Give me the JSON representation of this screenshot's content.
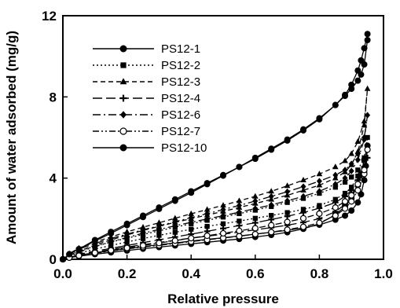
{
  "chart_data": {
    "type": "line",
    "xlabel": "Relative pressure",
    "ylabel": "Amount of water adsorbed (mg/g)",
    "xlim": [
      0,
      1.0
    ],
    "ylim": [
      0,
      12
    ],
    "x_ticks": [
      "0.0",
      "0.2",
      "0.4",
      "0.6",
      "0.8",
      "1.0"
    ],
    "y_ticks": [
      "0",
      "4",
      "8",
      "12"
    ],
    "grid": false,
    "legend_position": "top-left",
    "series": [
      {
        "name": "PS12-1",
        "marker": "circle-filled",
        "dash": "solid",
        "x": [
          0.0,
          0.02,
          0.05,
          0.1,
          0.15,
          0.2,
          0.25,
          0.3,
          0.35,
          0.4,
          0.45,
          0.5,
          0.55,
          0.6,
          0.65,
          0.7,
          0.75,
          0.8,
          0.85,
          0.88,
          0.9,
          0.92,
          0.93,
          0.94,
          0.95,
          0.945,
          0.94,
          0.93,
          0.92,
          0.9,
          0.88,
          0.85,
          0.8,
          0.75,
          0.7,
          0.65,
          0.6,
          0.55,
          0.5,
          0.45,
          0.4,
          0.35,
          0.3,
          0.25,
          0.2,
          0.15,
          0.1,
          0.05,
          0.02
        ],
        "y": [
          0.0,
          0.08,
          0.15,
          0.25,
          0.34,
          0.43,
          0.52,
          0.6,
          0.68,
          0.76,
          0.84,
          0.92,
          1.0,
          1.1,
          1.2,
          1.33,
          1.5,
          1.75,
          2.2,
          2.6,
          3.0,
          3.7,
          4.2,
          4.9,
          5.6,
          4.6,
          3.9,
          3.2,
          2.8,
          2.4,
          2.15,
          1.95,
          1.7,
          1.55,
          1.43,
          1.33,
          1.24,
          1.15,
          1.06,
          0.98,
          0.9,
          0.8,
          0.72,
          0.62,
          0.52,
          0.42,
          0.32,
          0.2,
          0.1
        ]
      },
      {
        "name": "PS12-2",
        "marker": "square-filled",
        "dash": "dotted",
        "x": [
          0.0,
          0.02,
          0.05,
          0.1,
          0.15,
          0.2,
          0.25,
          0.3,
          0.35,
          0.4,
          0.45,
          0.5,
          0.55,
          0.6,
          0.65,
          0.7,
          0.75,
          0.8,
          0.85,
          0.88,
          0.9,
          0.92,
          0.94,
          0.95,
          0.94,
          0.92,
          0.9,
          0.88,
          0.85,
          0.8,
          0.75,
          0.7,
          0.65,
          0.6,
          0.55,
          0.5,
          0.45,
          0.4,
          0.35,
          0.3,
          0.25,
          0.2,
          0.15,
          0.1,
          0.05,
          0.02
        ],
        "y": [
          0.0,
          0.15,
          0.3,
          0.5,
          0.68,
          0.85,
          1.02,
          1.18,
          1.33,
          1.48,
          1.62,
          1.75,
          1.88,
          2.02,
          2.16,
          2.3,
          2.46,
          2.65,
          2.95,
          3.25,
          3.55,
          4.1,
          4.9,
          6.0,
          5.0,
          4.4,
          4.05,
          3.8,
          3.55,
          3.25,
          3.0,
          2.8,
          2.6,
          2.42,
          2.25,
          2.08,
          1.92,
          1.75,
          1.58,
          1.4,
          1.22,
          1.04,
          0.85,
          0.65,
          0.4,
          0.2
        ]
      },
      {
        "name": "PS12-3",
        "marker": "triangle-filled",
        "dash": "dashed",
        "x": [
          0.0,
          0.02,
          0.05,
          0.1,
          0.15,
          0.2,
          0.25,
          0.3,
          0.35,
          0.4,
          0.45,
          0.5,
          0.55,
          0.6,
          0.65,
          0.7,
          0.75,
          0.8,
          0.85,
          0.88,
          0.9,
          0.92,
          0.94,
          0.95,
          0.94,
          0.92,
          0.9,
          0.88,
          0.85,
          0.8,
          0.75,
          0.7,
          0.65,
          0.6,
          0.55,
          0.5,
          0.45,
          0.4,
          0.35,
          0.3,
          0.25,
          0.2,
          0.15,
          0.1,
          0.05,
          0.02
        ],
        "y": [
          0.0,
          0.2,
          0.4,
          0.7,
          0.95,
          1.2,
          1.42,
          1.62,
          1.82,
          2.0,
          2.18,
          2.36,
          2.55,
          2.75,
          2.95,
          3.15,
          3.4,
          3.65,
          4.0,
          4.3,
          4.65,
          5.3,
          6.6,
          8.4,
          6.8,
          5.8,
          5.2,
          4.85,
          4.55,
          4.2,
          3.9,
          3.62,
          3.35,
          3.1,
          2.88,
          2.66,
          2.45,
          2.24,
          2.02,
          1.8,
          1.58,
          1.35,
          1.1,
          0.85,
          0.55,
          0.28
        ]
      },
      {
        "name": "PS12-4",
        "marker": "plus",
        "dash": "long-dash",
        "x": [
          0.0,
          0.02,
          0.05,
          0.1,
          0.15,
          0.2,
          0.25,
          0.3,
          0.35,
          0.4,
          0.45,
          0.5,
          0.55,
          0.6,
          0.65,
          0.7,
          0.75,
          0.8,
          0.85,
          0.88,
          0.9,
          0.92,
          0.94,
          0.95,
          0.94,
          0.92,
          0.9,
          0.88,
          0.85,
          0.8,
          0.75,
          0.7,
          0.65,
          0.6,
          0.55,
          0.5,
          0.45,
          0.4,
          0.35,
          0.3,
          0.25,
          0.2,
          0.15,
          0.1,
          0.05,
          0.02
        ],
        "y": [
          0.0,
          0.1,
          0.2,
          0.35,
          0.48,
          0.6,
          0.72,
          0.83,
          0.94,
          1.04,
          1.14,
          1.24,
          1.34,
          1.45,
          1.56,
          1.68,
          1.82,
          2.0,
          2.35,
          2.7,
          3.05,
          3.6,
          4.3,
          5.0,
          4.5,
          3.9,
          3.4,
          3.1,
          2.8,
          2.52,
          2.3,
          2.12,
          1.96,
          1.8,
          1.66,
          1.52,
          1.38,
          1.24,
          1.1,
          0.96,
          0.82,
          0.68,
          0.54,
          0.4,
          0.25,
          0.12
        ]
      },
      {
        "name": "PS12-6",
        "marker": "diamond-filled",
        "dash": "dash-dot",
        "x": [
          0.0,
          0.02,
          0.05,
          0.1,
          0.15,
          0.2,
          0.25,
          0.3,
          0.35,
          0.4,
          0.45,
          0.5,
          0.55,
          0.6,
          0.65,
          0.7,
          0.75,
          0.8,
          0.85,
          0.88,
          0.9,
          0.92,
          0.94,
          0.95,
          0.94,
          0.92,
          0.9,
          0.88,
          0.85,
          0.8,
          0.75,
          0.7,
          0.65,
          0.6,
          0.55,
          0.5,
          0.45,
          0.4,
          0.35,
          0.3,
          0.25,
          0.2,
          0.15,
          0.1,
          0.05,
          0.02
        ],
        "y": [
          0.0,
          0.18,
          0.36,
          0.62,
          0.86,
          1.08,
          1.28,
          1.47,
          1.65,
          1.82,
          1.99,
          2.15,
          2.32,
          2.5,
          2.68,
          2.88,
          3.1,
          3.35,
          3.7,
          4.0,
          4.35,
          4.9,
          5.9,
          7.1,
          6.0,
          5.2,
          4.7,
          4.4,
          4.15,
          3.85,
          3.58,
          3.33,
          3.1,
          2.87,
          2.65,
          2.45,
          2.25,
          2.05,
          1.85,
          1.65,
          1.45,
          1.24,
          1.02,
          0.78,
          0.5,
          0.25
        ]
      },
      {
        "name": "PS12-7",
        "marker": "circle-open",
        "dash": "dash-dot-dot",
        "x": [
          0.0,
          0.02,
          0.05,
          0.1,
          0.15,
          0.2,
          0.25,
          0.3,
          0.35,
          0.4,
          0.45,
          0.5,
          0.55,
          0.6,
          0.65,
          0.7,
          0.75,
          0.8,
          0.85,
          0.88,
          0.9,
          0.92,
          0.94,
          0.95,
          0.94,
          0.92,
          0.9,
          0.88,
          0.85,
          0.8,
          0.75,
          0.7,
          0.65,
          0.6,
          0.55,
          0.5,
          0.45,
          0.4,
          0.35,
          0.3,
          0.25,
          0.2,
          0.15,
          0.1,
          0.05,
          0.02
        ],
        "y": [
          0.0,
          0.09,
          0.18,
          0.3,
          0.41,
          0.51,
          0.6,
          0.69,
          0.78,
          0.87,
          0.96,
          1.05,
          1.14,
          1.24,
          1.34,
          1.46,
          1.6,
          1.8,
          2.15,
          2.5,
          2.85,
          3.4,
          4.2,
          5.4,
          4.4,
          3.7,
          3.15,
          2.85,
          2.55,
          2.25,
          2.02,
          1.84,
          1.68,
          1.53,
          1.4,
          1.28,
          1.16,
          1.04,
          0.92,
          0.8,
          0.68,
          0.56,
          0.44,
          0.32,
          0.18,
          0.08
        ]
      },
      {
        "name": "PS12-10",
        "marker": "circle-filled",
        "dash": "solid",
        "x": [
          0.0,
          0.02,
          0.05,
          0.1,
          0.15,
          0.2,
          0.25,
          0.3,
          0.35,
          0.4,
          0.45,
          0.5,
          0.55,
          0.6,
          0.65,
          0.7,
          0.75,
          0.8,
          0.85,
          0.88,
          0.9,
          0.92,
          0.93,
          0.94,
          0.95,
          0.95,
          0.94,
          0.93,
          0.92,
          0.9,
          0.88,
          0.85,
          0.8,
          0.75,
          0.7,
          0.65,
          0.6,
          0.55,
          0.5,
          0.45,
          0.4,
          0.35,
          0.3,
          0.25,
          0.2,
          0.15,
          0.1,
          0.05,
          0.02
        ],
        "y": [
          0.0,
          0.25,
          0.5,
          0.95,
          1.35,
          1.75,
          2.15,
          2.55,
          2.95,
          3.35,
          3.75,
          4.15,
          4.55,
          4.95,
          5.4,
          5.85,
          6.35,
          6.9,
          7.6,
          8.1,
          8.6,
          9.3,
          9.8,
          10.4,
          11.1,
          10.8,
          9.6,
          9.1,
          8.8,
          8.4,
          8.05,
          7.6,
          6.95,
          6.4,
          5.9,
          5.45,
          5.0,
          4.55,
          4.12,
          3.7,
          3.28,
          2.88,
          2.48,
          2.08,
          1.68,
          1.28,
          0.9,
          0.5,
          0.25
        ]
      }
    ]
  }
}
